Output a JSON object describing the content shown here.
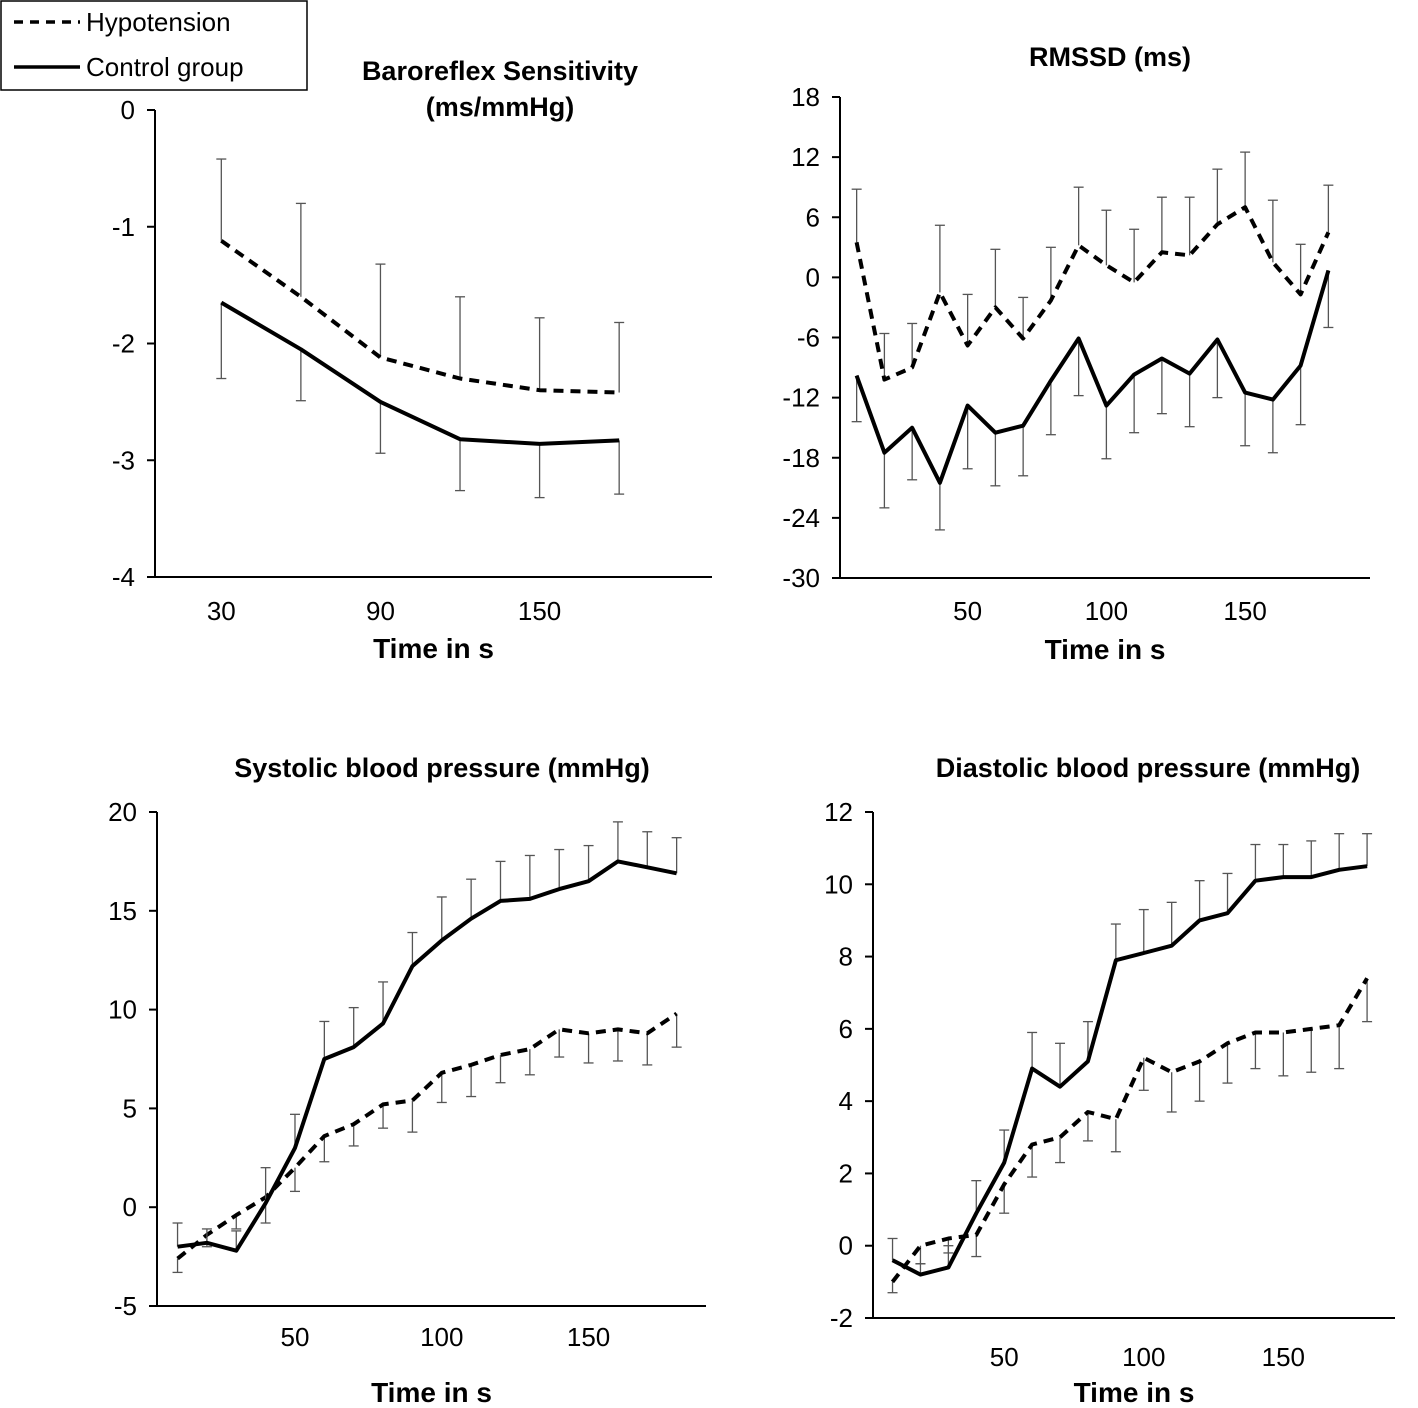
{
  "legend": {
    "items": [
      {
        "label": "Hypotension",
        "style": "dashed"
      },
      {
        "label": "Control group",
        "style": "solid"
      }
    ]
  },
  "chart_data": [
    {
      "type": "line",
      "title_lines": [
        "Baroreflex Sensitivity",
        "(ms/mmHg)"
      ],
      "xlabel": "Time in s",
      "ylabel": "",
      "xlim": [
        5,
        215
      ],
      "ylim": [
        -4,
        0
      ],
      "xticks": [
        30,
        90,
        150
      ],
      "yticks": [
        0,
        -1,
        -2,
        -3,
        -4
      ],
      "grid": false,
      "legend_position": "top-left",
      "series": [
        {
          "name": "Hypotension",
          "style": "dashed",
          "error_dir": "up",
          "x": [
            30,
            60,
            90,
            120,
            150,
            180
          ],
          "y": [
            -1.12,
            -1.6,
            -2.12,
            -2.3,
            -2.4,
            -2.42
          ],
          "err": [
            0.7,
            0.8,
            0.8,
            0.7,
            0.62,
            0.6
          ]
        },
        {
          "name": "Control group",
          "style": "solid",
          "error_dir": "down",
          "x": [
            30,
            60,
            90,
            120,
            150,
            180
          ],
          "y": [
            -1.65,
            -2.05,
            -2.5,
            -2.82,
            -2.86,
            -2.83
          ],
          "err": [
            0.65,
            0.44,
            0.44,
            0.44,
            0.46,
            0.46
          ]
        }
      ]
    },
    {
      "type": "line",
      "title_lines": [
        "RMSSD (ms)"
      ],
      "xlabel": "Time in s",
      "ylabel": "",
      "xlim": [
        4,
        195
      ],
      "ylim": [
        -30,
        18
      ],
      "xticks": [
        50,
        100,
        150
      ],
      "yticks": [
        18,
        12,
        6,
        0,
        -6,
        -12,
        -18,
        -24,
        -30
      ],
      "grid": false,
      "series": [
        {
          "name": "Hypotension",
          "style": "dashed",
          "error_dir": "up",
          "x": [
            10,
            20,
            30,
            40,
            50,
            60,
            70,
            80,
            90,
            100,
            110,
            120,
            130,
            140,
            150,
            160,
            170,
            180
          ],
          "y": [
            3.5,
            -10.2,
            -9,
            -1.5,
            -6.8,
            -3,
            -6.1,
            -2.3,
            3.2,
            1.2,
            -0.5,
            2.5,
            2.2,
            5.3,
            7,
            1.5,
            -1.7,
            4.5
          ],
          "err": [
            5.3,
            4.6,
            4.4,
            6.7,
            5.1,
            5.8,
            4.1,
            5.3,
            5.8,
            5.5,
            5.3,
            5.5,
            5.8,
            5.5,
            5.5,
            6.2,
            5,
            4.7
          ]
        },
        {
          "name": "Control group",
          "style": "solid",
          "error_dir": "down",
          "x": [
            10,
            20,
            30,
            40,
            50,
            60,
            70,
            80,
            90,
            100,
            110,
            120,
            130,
            140,
            150,
            160,
            170,
            180
          ],
          "y": [
            -9.8,
            -17.5,
            -15,
            -20.5,
            -12.8,
            -15.5,
            -14.8,
            -10.3,
            -6.1,
            -12.8,
            -9.7,
            -8.1,
            -9.6,
            -6.2,
            -11.5,
            -12.2,
            -8.8,
            0.7
          ],
          "err": [
            4.6,
            5.5,
            5.2,
            4.7,
            6.3,
            5.3,
            5,
            5.4,
            5.7,
            5.3,
            5.8,
            5.5,
            5.3,
            5.8,
            5.3,
            5.3,
            5.9,
            5.7
          ]
        }
      ]
    },
    {
      "type": "line",
      "title_lines": [
        "Systolic blood pressure (mmHg)"
      ],
      "xlabel": "Time in s",
      "ylabel": "",
      "xlim": [
        3,
        190
      ],
      "ylim": [
        -5,
        20
      ],
      "xticks": [
        50,
        100,
        150
      ],
      "yticks": [
        20,
        15,
        10,
        5,
        0,
        -5
      ],
      "grid": false,
      "series": [
        {
          "name": "Hypotension",
          "style": "dashed",
          "error_dir": "down",
          "x": [
            10,
            20,
            30,
            40,
            50,
            60,
            70,
            80,
            90,
            100,
            110,
            120,
            130,
            140,
            150,
            160,
            170,
            180
          ],
          "y": [
            -2.6,
            -1.4,
            -0.4,
            0.5,
            2,
            3.6,
            4.2,
            5.2,
            5.4,
            6.8,
            7.2,
            7.7,
            8,
            9,
            8.8,
            9,
            8.8,
            9.8
          ],
          "err": [
            0.7,
            0.6,
            0.7,
            1.3,
            1.2,
            1.3,
            1.1,
            1.2,
            1.6,
            1.5,
            1.6,
            1.4,
            1.3,
            1.4,
            1.5,
            1.6,
            1.6,
            1.7
          ]
        },
        {
          "name": "Control group",
          "style": "solid",
          "error_dir": "up",
          "x": [
            10,
            20,
            30,
            40,
            50,
            60,
            70,
            80,
            90,
            100,
            110,
            120,
            130,
            140,
            150,
            160,
            170,
            180
          ],
          "y": [
            -2,
            -1.8,
            -2.2,
            0.2,
            3,
            7.5,
            8.1,
            9.3,
            12.2,
            13.5,
            14.6,
            15.5,
            15.6,
            16.1,
            16.5,
            17.5,
            17.2,
            16.9
          ],
          "err": [
            1.2,
            0.7,
            1,
            1.8,
            1.7,
            1.9,
            2,
            2.1,
            1.7,
            2.2,
            2,
            2,
            2.2,
            2,
            1.8,
            2,
            1.8,
            1.8
          ]
        }
      ]
    },
    {
      "type": "line",
      "title_lines": [
        "Diastolic blood pressure (mmHg)"
      ],
      "xlabel": "Time in s",
      "ylabel": "",
      "xlim": [
        3,
        190
      ],
      "ylim": [
        -2,
        12
      ],
      "xticks": [
        50,
        100,
        150
      ],
      "yticks": [
        12,
        10,
        8,
        6,
        4,
        2,
        0,
        -2
      ],
      "grid": false,
      "series": [
        {
          "name": "Hypotension",
          "style": "dashed",
          "error_dir": "down",
          "x": [
            10,
            20,
            30,
            40,
            50,
            60,
            70,
            80,
            90,
            100,
            110,
            120,
            130,
            140,
            150,
            160,
            170,
            180
          ],
          "y": [
            -1,
            0,
            0.2,
            0.3,
            1.7,
            2.8,
            3,
            3.7,
            3.5,
            5.2,
            4.8,
            5.1,
            5.6,
            5.9,
            5.9,
            6,
            6.1,
            7.4
          ],
          "err": [
            0.3,
            0.5,
            0.4,
            0.6,
            0.8,
            0.9,
            0.7,
            0.8,
            0.9,
            0.9,
            1.1,
            1.1,
            1.1,
            1,
            1.2,
            1.2,
            1.2,
            1.2
          ]
        },
        {
          "name": "Control group",
          "style": "solid",
          "error_dir": "up",
          "x": [
            10,
            20,
            30,
            40,
            50,
            60,
            70,
            80,
            90,
            100,
            110,
            120,
            130,
            140,
            150,
            160,
            170,
            180
          ],
          "y": [
            -0.4,
            -0.8,
            -0.6,
            0.9,
            2.3,
            4.9,
            4.4,
            5.1,
            7.9,
            8.1,
            8.3,
            9,
            9.2,
            10.1,
            10.2,
            10.2,
            10.4,
            10.5
          ],
          "err": [
            0.6,
            0.3,
            0.6,
            0.9,
            0.9,
            1,
            1.2,
            1.1,
            1,
            1.2,
            1.2,
            1.1,
            1.1,
            1,
            0.9,
            1,
            1,
            0.9
          ]
        }
      ]
    }
  ]
}
